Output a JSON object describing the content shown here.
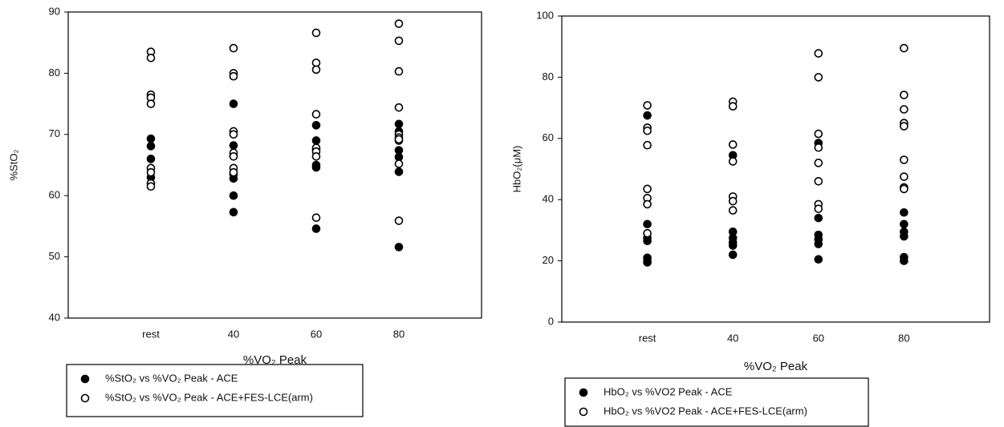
{
  "chart_data": [
    {
      "type": "scatter",
      "ylabel": "%StO₂",
      "xlabel": "%VO₂ Peak",
      "categories": [
        "rest",
        "40",
        "60",
        "80"
      ],
      "ylim": [
        40,
        90
      ],
      "yticks": [
        40,
        50,
        60,
        70,
        80,
        90
      ],
      "series": [
        {
          "name": "%StO₂ vs %VO₂ Peak - ACE",
          "color": "#000000",
          "x": [
            "rest",
            "rest",
            "rest",
            "rest",
            "40",
            "40",
            "40",
            "40",
            "40",
            "40",
            "40",
            "60",
            "60",
            "60",
            "60",
            "60",
            "60",
            "80",
            "80",
            "80",
            "80",
            "80",
            "80",
            "80"
          ],
          "values": [
            69.3,
            68.1,
            66.0,
            63.0,
            75.0,
            68.2,
            66.5,
            63.5,
            62.8,
            60.0,
            57.3,
            71.5,
            69.0,
            67.5,
            65.0,
            64.6,
            54.6,
            71.7,
            70.5,
            69.0,
            67.4,
            66.3,
            63.9,
            51.6
          ]
        },
        {
          "name": "%StO₂ vs %VO₂ Peak - ACE+FES-LCE(arm)",
          "color": "#ffffff",
          "x": [
            "rest",
            "rest",
            "rest",
            "rest",
            "rest",
            "rest",
            "rest",
            "rest",
            "rest",
            "40",
            "40",
            "40",
            "40",
            "40",
            "40",
            "40",
            "40",
            "40",
            "60",
            "60",
            "60",
            "60",
            "60",
            "60",
            "60",
            "60",
            "80",
            "80",
            "80",
            "80",
            "80",
            "80",
            "80",
            "80",
            "80"
          ],
          "values": [
            83.5,
            82.5,
            76.5,
            76.0,
            75.0,
            64.5,
            63.8,
            62.0,
            61.5,
            84.1,
            80.0,
            79.5,
            70.5,
            70.0,
            67.0,
            66.4,
            64.5,
            63.8,
            86.6,
            81.7,
            80.6,
            73.3,
            67.8,
            67.2,
            66.4,
            56.4,
            88.1,
            85.3,
            80.3,
            74.4,
            70.0,
            69.5,
            69.2,
            65.2,
            55.9
          ]
        }
      ]
    },
    {
      "type": "scatter",
      "ylabel": "HbO₂(μM)",
      "xlabel": "%VO₂ Peak",
      "categories": [
        "rest",
        "40",
        "60",
        "80"
      ],
      "ylim": [
        0,
        100
      ],
      "yticks": [
        0,
        20,
        40,
        60,
        80,
        100
      ],
      "series": [
        {
          "name": "HbO₂ vs %VO2 Peak - ACE",
          "color": "#000000",
          "x": [
            "rest",
            "rest",
            "rest",
            "rest",
            "rest",
            "rest",
            "rest",
            "40",
            "40",
            "40",
            "40",
            "40",
            "40",
            "60",
            "60",
            "60",
            "60",
            "60",
            "60",
            "80",
            "80",
            "80",
            "80",
            "80",
            "80",
            "80"
          ],
          "values": [
            67.5,
            32.0,
            27.5,
            26.5,
            21.0,
            20.0,
            19.5,
            54.5,
            29.5,
            27.5,
            26.0,
            25.0,
            22.0,
            58.5,
            34.0,
            28.5,
            27.0,
            25.5,
            20.5,
            65.0,
            35.8,
            32.0,
            29.5,
            28.0,
            21.2,
            20.0
          ]
        },
        {
          "name": "HbO₂ vs %VO2 Peak - ACE+FES-LCE(arm)",
          "color": "#ffffff",
          "x": [
            "rest",
            "rest",
            "rest",
            "rest",
            "rest",
            "rest",
            "rest",
            "rest",
            "40",
            "40",
            "40",
            "40",
            "40",
            "40",
            "40",
            "60",
            "60",
            "60",
            "60",
            "60",
            "60",
            "60",
            "60",
            "80",
            "80",
            "80",
            "80",
            "80",
            "80",
            "80",
            "80",
            "80"
          ],
          "values": [
            70.8,
            63.5,
            62.5,
            57.8,
            43.5,
            40.5,
            38.5,
            29.0,
            72.0,
            70.5,
            58.0,
            52.5,
            41.0,
            39.5,
            36.5,
            87.8,
            80.0,
            61.5,
            57.0,
            52.0,
            46.0,
            38.5,
            37.0,
            89.5,
            74.2,
            69.5,
            65.0,
            64.0,
            53.0,
            47.5,
            44.0,
            43.5
          ]
        }
      ]
    }
  ]
}
